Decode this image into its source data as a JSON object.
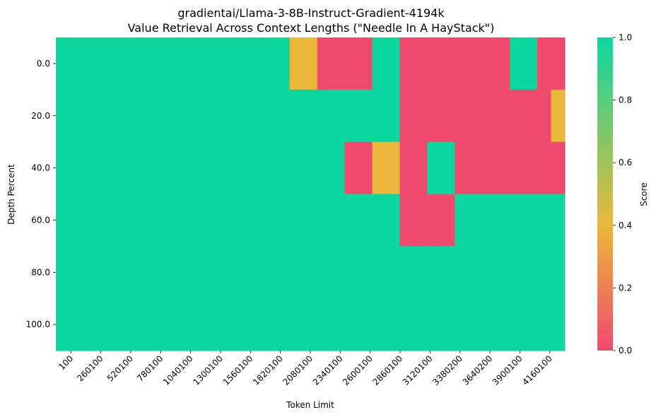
{
  "chart_data": {
    "type": "heatmap",
    "title": "gradientai/Llama-3-8B-Instruct-Gradient-4194k",
    "subtitle": "Value Retrieval Across Context Lengths (\"Needle In A HayStack\")",
    "xlabel": "Token Limit",
    "ylabel": "Depth Percent",
    "colorbar_label": "Score",
    "x_tick_labels": [
      "100",
      "260100",
      "520100",
      "780100",
      "1040100",
      "1300100",
      "1560100",
      "1820100",
      "2080100",
      "2340100",
      "2600100",
      "2860100",
      "3120100",
      "3380200",
      "3640200",
      "3900100",
      "4160100"
    ],
    "y_tick_labels": [
      "0.0",
      "20.0",
      "40.0",
      "60.0",
      "80.0",
      "100.0"
    ],
    "colorbar_ticks": [
      "0.0",
      "0.2",
      "0.4",
      "0.6",
      "0.8",
      "1.0"
    ],
    "colorbar_range": [
      0,
      1
    ],
    "colormap": [
      "#f0496e",
      "#ebb839",
      "#0cd79f"
    ],
    "values": [
      [
        1,
        1,
        1,
        1,
        1,
        1,
        1,
        1,
        1,
        1,
        1,
        1,
        1,
        1,
        1,
        1,
        1,
        0.5,
        0.5,
        0,
        0,
        0,
        0,
        1,
        1,
        0,
        0,
        0,
        0,
        0,
        0,
        0,
        0,
        1,
        1,
        0,
        0
      ],
      [
        1,
        1,
        1,
        1,
        1,
        1,
        1,
        1,
        1,
        1,
        1,
        1,
        1,
        1,
        1,
        1,
        1,
        1,
        1,
        1,
        1,
        1,
        1,
        1,
        1,
        0,
        0,
        0,
        0,
        0,
        0,
        0,
        0,
        0,
        0,
        0,
        0.5
      ],
      [
        1,
        1,
        1,
        1,
        1,
        1,
        1,
        1,
        1,
        1,
        1,
        1,
        1,
        1,
        1,
        1,
        1,
        1,
        1,
        1,
        1,
        0,
        0,
        0.5,
        0.5,
        0,
        0,
        1,
        1,
        0,
        0,
        0,
        0,
        0,
        0,
        0,
        0
      ],
      [
        1,
        1,
        1,
        1,
        1,
        1,
        1,
        1,
        1,
        1,
        1,
        1,
        1,
        1,
        1,
        1,
        1,
        1,
        1,
        1,
        1,
        1,
        1,
        1,
        1,
        0,
        0,
        0,
        0,
        1,
        1,
        1,
        1,
        1,
        1,
        1,
        1
      ],
      [
        1,
        1,
        1,
        1,
        1,
        1,
        1,
        1,
        1,
        1,
        1,
        1,
        1,
        1,
        1,
        1,
        1,
        1,
        1,
        1,
        1,
        1,
        1,
        1,
        1,
        1,
        1,
        1,
        1,
        1,
        1,
        1,
        1,
        1,
        1,
        1,
        1
      ],
      [
        1,
        1,
        1,
        1,
        1,
        1,
        1,
        1,
        1,
        1,
        1,
        1,
        1,
        1,
        1,
        1,
        1,
        1,
        1,
        1,
        1,
        1,
        1,
        1,
        1,
        1,
        1,
        1,
        1,
        1,
        1,
        1,
        1,
        1,
        1,
        1,
        1
      ]
    ]
  }
}
